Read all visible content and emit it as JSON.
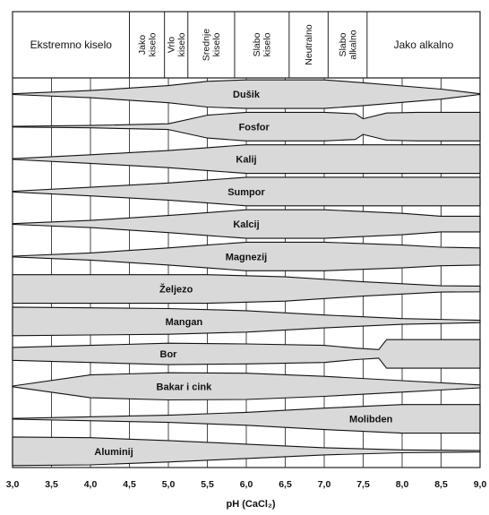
{
  "header_zones": [
    {
      "label": "Ekstremno kiselo",
      "from": 3.0,
      "to": 4.5,
      "vertical": false
    },
    {
      "label": "Jako\nkiselo",
      "from": 4.5,
      "to": 4.95,
      "vertical": true
    },
    {
      "label": "Vrlo\nkiselo",
      "from": 4.95,
      "to": 5.25,
      "vertical": true
    },
    {
      "label": "Srednje\nkiselo",
      "from": 5.25,
      "to": 5.85,
      "vertical": true
    },
    {
      "label": "Slabo\nkiselo",
      "from": 5.85,
      "to": 6.55,
      "vertical": true
    },
    {
      "label": "Neutralno",
      "from": 6.55,
      "to": 7.05,
      "vertical": true
    },
    {
      "label": "Slabo\nalkalno",
      "from": 7.05,
      "to": 7.55,
      "vertical": true
    },
    {
      "label": "Jako alkalno",
      "from": 7.55,
      "to": 9.0,
      "vertical": false
    }
  ],
  "x_ticks": [
    "3,0",
    "3,5",
    "4,0",
    "4,5",
    "5,0",
    "5,5",
    "6,0",
    "6,5",
    "7,0",
    "7,5",
    "8,0",
    "8,5",
    "9,0"
  ],
  "x_label": "pH (CaCl₂)",
  "chart_data": {
    "type": "band",
    "xlim": [
      3.0,
      9.0
    ],
    "band_fill": "#d9d9d9",
    "series": [
      {
        "name": "Dušik",
        "label_at": 6.0,
        "w": [
          [
            3.0,
            0.0
          ],
          [
            4.0,
            0.25
          ],
          [
            5.0,
            0.6
          ],
          [
            5.5,
            0.9
          ],
          [
            6.0,
            1.0
          ],
          [
            7.0,
            1.0
          ],
          [
            7.5,
            0.8
          ],
          [
            8.5,
            0.35
          ],
          [
            9.0,
            0.0
          ]
        ]
      },
      {
        "name": "Fosfor",
        "label_at": 6.1,
        "w": [
          [
            3.0,
            0.0
          ],
          [
            4.0,
            0.08
          ],
          [
            5.0,
            0.2
          ],
          [
            5.5,
            0.8
          ],
          [
            6.0,
            1.0
          ],
          [
            7.0,
            1.0
          ],
          [
            7.4,
            0.9
          ],
          [
            7.5,
            0.55
          ],
          [
            7.8,
            0.95
          ],
          [
            8.2,
            1.0
          ],
          [
            9.0,
            1.0
          ]
        ]
      },
      {
        "name": "Kalij",
        "label_at": 6.0,
        "w": [
          [
            3.0,
            0.0
          ],
          [
            4.0,
            0.3
          ],
          [
            5.0,
            0.6
          ],
          [
            5.5,
            0.8
          ],
          [
            6.0,
            1.0
          ],
          [
            9.0,
            1.0
          ]
        ]
      },
      {
        "name": "Sumpor",
        "label_at": 6.0,
        "w": [
          [
            3.0,
            0.0
          ],
          [
            4.0,
            0.3
          ],
          [
            5.0,
            0.6
          ],
          [
            5.5,
            0.8
          ],
          [
            6.0,
            1.0
          ],
          [
            9.0,
            1.0
          ]
        ]
      },
      {
        "name": "Kalcij",
        "label_at": 6.0,
        "w": [
          [
            3.0,
            0.0
          ],
          [
            4.0,
            0.25
          ],
          [
            5.0,
            0.6
          ],
          [
            5.5,
            0.8
          ],
          [
            6.0,
            1.0
          ],
          [
            7.0,
            1.0
          ],
          [
            8.0,
            0.75
          ],
          [
            8.5,
            0.55
          ],
          [
            9.0,
            0.55
          ]
        ]
      },
      {
        "name": "Magnezij",
        "label_at": 6.0,
        "w": [
          [
            3.0,
            0.0
          ],
          [
            4.0,
            0.25
          ],
          [
            5.0,
            0.6
          ],
          [
            5.5,
            0.8
          ],
          [
            6.0,
            1.0
          ],
          [
            7.0,
            1.0
          ],
          [
            8.0,
            0.8
          ],
          [
            8.5,
            0.65
          ],
          [
            9.0,
            0.6
          ]
        ]
      },
      {
        "name": "Željezo",
        "label_at": 5.1,
        "w": [
          [
            3.0,
            1.0
          ],
          [
            5.5,
            1.0
          ],
          [
            6.5,
            0.85
          ],
          [
            7.5,
            0.5
          ],
          [
            8.5,
            0.22
          ],
          [
            9.0,
            0.2
          ]
        ]
      },
      {
        "name": "Mangan",
        "label_at": 5.2,
        "w": [
          [
            3.0,
            1.0
          ],
          [
            4.0,
            0.95
          ],
          [
            5.0,
            0.9
          ],
          [
            6.0,
            0.75
          ],
          [
            7.0,
            0.45
          ],
          [
            8.0,
            0.2
          ],
          [
            9.0,
            0.08
          ]
        ]
      },
      {
        "name": "Bor",
        "label_at": 5.0,
        "w": [
          [
            3.0,
            0.45
          ],
          [
            4.0,
            0.6
          ],
          [
            5.0,
            0.75
          ],
          [
            6.0,
            0.7
          ],
          [
            7.0,
            0.6
          ],
          [
            7.4,
            0.4
          ],
          [
            7.7,
            0.3
          ],
          [
            7.8,
            1.0
          ],
          [
            9.0,
            1.0
          ]
        ]
      },
      {
        "name": "Bakar i cink",
        "label_at": 5.2,
        "w": [
          [
            3.0,
            0.0
          ],
          [
            4.0,
            0.8
          ],
          [
            5.0,
            0.95
          ],
          [
            6.0,
            0.92
          ],
          [
            7.0,
            0.7
          ],
          [
            8.0,
            0.4
          ],
          [
            9.0,
            0.1
          ]
        ]
      },
      {
        "name": "Molibden",
        "label_at": 7.6,
        "w": [
          [
            3.0,
            0.0
          ],
          [
            5.0,
            0.25
          ],
          [
            6.0,
            0.45
          ],
          [
            7.0,
            0.75
          ],
          [
            8.0,
            1.0
          ],
          [
            9.0,
            1.0
          ]
        ]
      },
      {
        "name": "Aluminij",
        "label_at": 4.3,
        "w": [
          [
            3.0,
            1.0
          ],
          [
            4.0,
            0.95
          ],
          [
            5.0,
            0.75
          ],
          [
            6.0,
            0.5
          ],
          [
            7.0,
            0.25
          ],
          [
            8.0,
            0.1
          ],
          [
            9.0,
            0.05
          ]
        ]
      }
    ]
  }
}
